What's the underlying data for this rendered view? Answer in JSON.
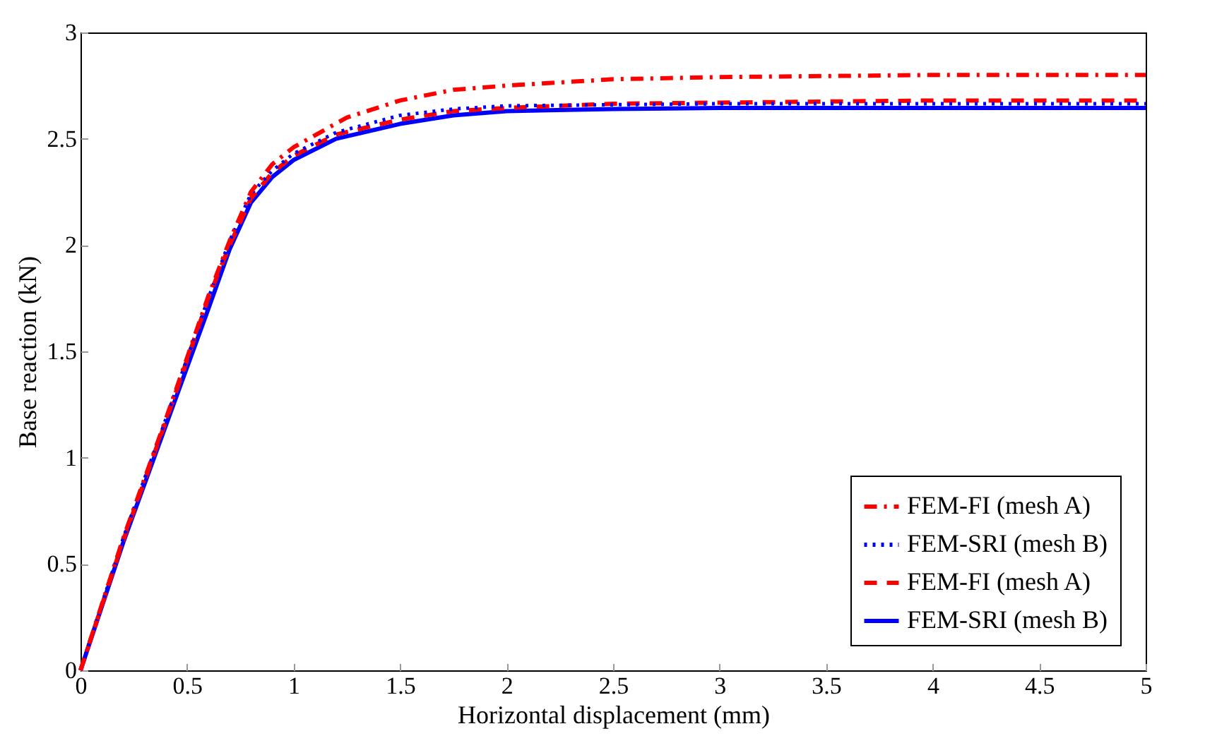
{
  "chart_data": {
    "type": "line",
    "xlabel": "Horizontal displacement (mm)",
    "ylabel": "Base reaction (kN)",
    "xlim": [
      0,
      5
    ],
    "ylim": [
      0,
      3
    ],
    "xticks": [
      0,
      0.5,
      1,
      1.5,
      2,
      2.5,
      3,
      3.5,
      4,
      4.5,
      5
    ],
    "yticks": [
      0,
      0.5,
      1,
      1.5,
      2,
      2.5,
      3
    ],
    "grid": false,
    "legend": "bottom right",
    "marker": "none",
    "series": [
      {
        "name": "FEM-FI (mesh A)",
        "color": "#ff0000",
        "line_style": "dashdot",
        "x": [
          0,
          0.2,
          0.4,
          0.6,
          0.7,
          0.8,
          0.9,
          1.0,
          1.25,
          1.5,
          1.75,
          2,
          2.5,
          3,
          4,
          5
        ],
        "values": [
          0,
          0.62,
          1.18,
          1.76,
          2.02,
          2.25,
          2.38,
          2.46,
          2.6,
          2.68,
          2.73,
          2.75,
          2.78,
          2.79,
          2.8,
          2.8
        ]
      },
      {
        "name": "FEM-SRI (mesh B)",
        "color": "#0000ff",
        "line_style": "dotted",
        "x": [
          0,
          0.2,
          0.4,
          0.6,
          0.7,
          0.8,
          0.9,
          1.0,
          1.2,
          1.5,
          1.75,
          2,
          2.5,
          3,
          4,
          5
        ],
        "values": [
          0,
          0.62,
          1.18,
          1.75,
          2.02,
          2.24,
          2.35,
          2.43,
          2.53,
          2.61,
          2.64,
          2.655,
          2.66,
          2.665,
          2.665,
          2.665
        ]
      },
      {
        "name": "FEM-FI (mesh A)",
        "color": "#ff0000",
        "line_style": "dashed",
        "x": [
          0,
          0.2,
          0.4,
          0.6,
          0.7,
          0.8,
          0.9,
          1.0,
          1.2,
          1.5,
          1.75,
          2,
          2.5,
          3,
          4,
          5
        ],
        "values": [
          0,
          0.61,
          1.17,
          1.75,
          2.0,
          2.22,
          2.34,
          2.42,
          2.52,
          2.59,
          2.63,
          2.645,
          2.665,
          2.67,
          2.68,
          2.68
        ]
      },
      {
        "name": "FEM-SRI (mesh B)",
        "color": "#0000ff",
        "line_style": "solid",
        "x": [
          0,
          0.2,
          0.4,
          0.6,
          0.7,
          0.8,
          0.9,
          1.0,
          1.2,
          1.5,
          1.75,
          2,
          2.5,
          3,
          4,
          5
        ],
        "values": [
          0,
          0.6,
          1.15,
          1.7,
          1.98,
          2.2,
          2.32,
          2.4,
          2.5,
          2.57,
          2.61,
          2.63,
          2.64,
          2.645,
          2.645,
          2.645
        ]
      }
    ]
  }
}
